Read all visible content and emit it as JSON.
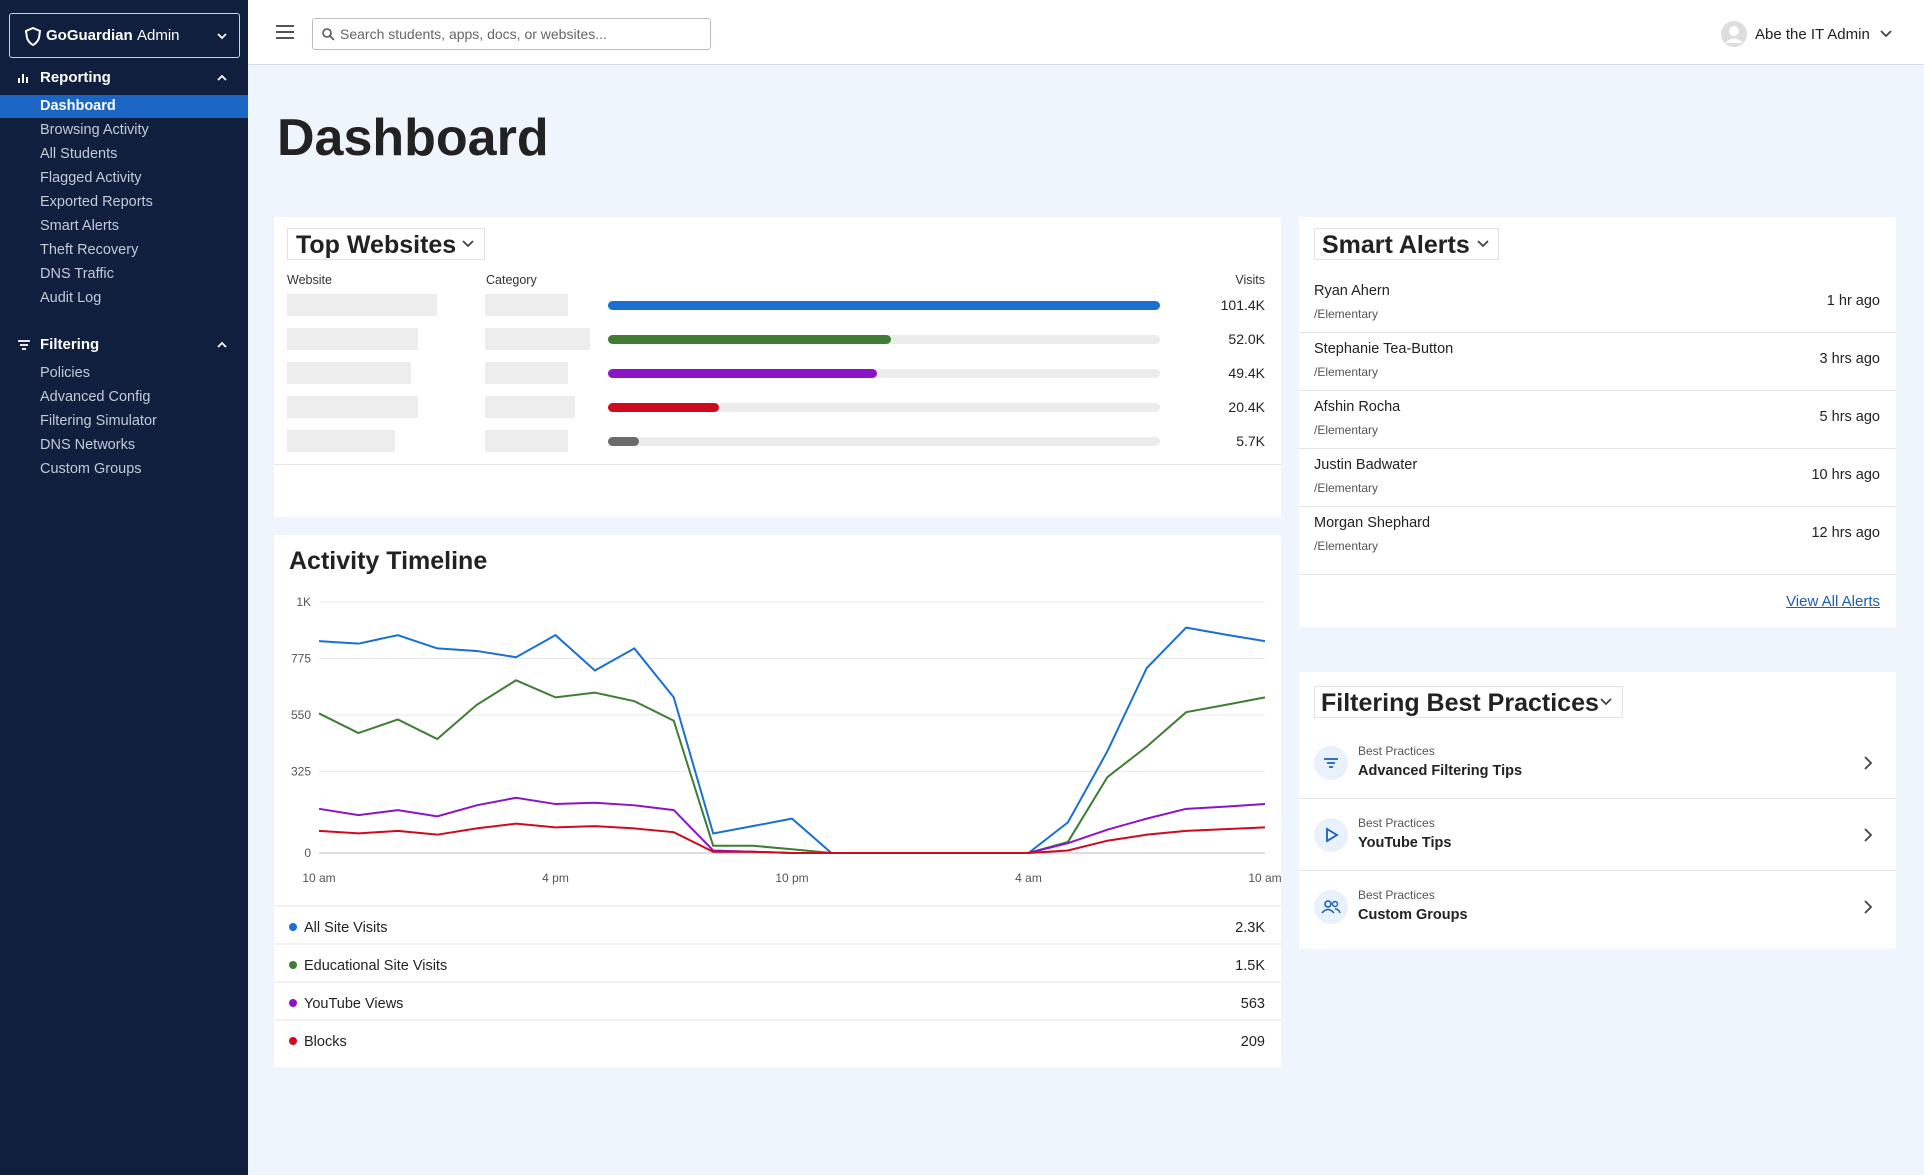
{
  "sidebar": {
    "brand": "GoGuardian",
    "brand_suffix": "Admin",
    "sections": [
      {
        "title": "Reporting",
        "items": [
          "Dashboard",
          "Browsing Activity",
          "All Students",
          "Flagged Activity",
          "Exported Reports",
          "Smart Alerts",
          "Theft Recovery",
          "DNS Traffic",
          "Audit Log"
        ]
      },
      {
        "title": "Filtering",
        "items": [
          "Policies",
          "Advanced Config",
          "Filtering Simulator",
          "DNS Networks",
          "Custom Groups"
        ]
      }
    ]
  },
  "header": {
    "search_placeholder": "Search students, apps, docs, or websites...",
    "user": "Abe the IT Admin"
  },
  "page_title": "Dashboard",
  "chart_data": [
    {
      "type": "bar",
      "title": "Top Websites",
      "columns": [
        "Website",
        "Category",
        "Visits"
      ],
      "values": [
        101400,
        52000,
        49400,
        20400,
        5700
      ],
      "value_labels": [
        "101.4K",
        "52.0K",
        "49.4K",
        "20.4K",
        "5.7K"
      ],
      "colors": [
        "#1b6fd2",
        "#3f7d34",
        "#8b14c9",
        "#cf0a1e",
        "#6b6b6b"
      ]
    },
    {
      "type": "line",
      "title": "Activity Timeline",
      "categories": [
        "10 am",
        null,
        null,
        null,
        null,
        null,
        "4 pm",
        null,
        null,
        null,
        null,
        null,
        "10 pm",
        null,
        null,
        null,
        null,
        null,
        "4 am",
        null,
        null,
        null,
        null,
        null,
        "10 am"
      ],
      "ylim": [
        0,
        1000
      ],
      "yticks": [
        0,
        325,
        550,
        775,
        {
          "value": 1000,
          "label": "1K"
        }
      ],
      "grid": true,
      "series": [
        {
          "name": "All Site Visits",
          "color": "#1b6fd2",
          "total": "2.3K",
          "values": [
            844,
            834,
            868,
            815,
            805,
            780,
            868,
            727,
            815,
            620,
            78,
            107,
            137,
            0,
            0,
            0,
            0,
            0,
            0,
            122,
            405,
            737,
            898,
            870,
            844
          ]
        },
        {
          "name": "Educational Site Visits",
          "color": "#3f7d34",
          "total": "1.5K",
          "values": [
            556,
            478,
            532,
            454,
            590,
            688,
            620,
            639,
            605,
            527,
            29,
            29,
            15,
            0,
            0,
            0,
            0,
            0,
            0,
            44,
            302,
            424,
            561,
            590,
            620
          ]
        },
        {
          "name": "YouTube Views",
          "color": "#8b14c9",
          "total": "563",
          "values": [
            176,
            151,
            171,
            146,
            190,
            220,
            195,
            200,
            190,
            171,
            10,
            5,
            0,
            0,
            0,
            0,
            0,
            0,
            0,
            39,
            93,
            137,
            176,
            185,
            195
          ]
        },
        {
          "name": "Blocks",
          "color": "#cf0a1e",
          "total": "209",
          "values": [
            88,
            78,
            88,
            73,
            98,
            117,
            102,
            107,
            98,
            83,
            5,
            5,
            0,
            0,
            0,
            0,
            0,
            0,
            0,
            10,
            49,
            73,
            88,
            95,
            102
          ]
        }
      ]
    }
  ],
  "smart_alerts": {
    "title": "Smart Alerts",
    "link": "View All Alerts",
    "items": [
      {
        "name": "Ryan Ahern",
        "group": "/Elementary",
        "time": "1 hr ago"
      },
      {
        "name": "Stephanie Tea-Button",
        "group": "/Elementary",
        "time": "3 hrs ago"
      },
      {
        "name": "Afshin Rocha",
        "group": "/Elementary",
        "time": "5 hrs ago"
      },
      {
        "name": "Justin Badwater",
        "group": "/Elementary",
        "time": "10 hrs ago"
      },
      {
        "name": "Morgan Shephard",
        "group": "/Elementary",
        "time": "12 hrs ago"
      }
    ]
  },
  "best_practices": {
    "title": "Filtering Best Practices",
    "items": [
      {
        "kicker": "Best Practices",
        "title": "Advanced Filtering Tips"
      },
      {
        "kicker": "Best Practices",
        "title": "YouTube Tips"
      },
      {
        "kicker": "Best Practices",
        "title": "Custom Groups"
      }
    ]
  }
}
